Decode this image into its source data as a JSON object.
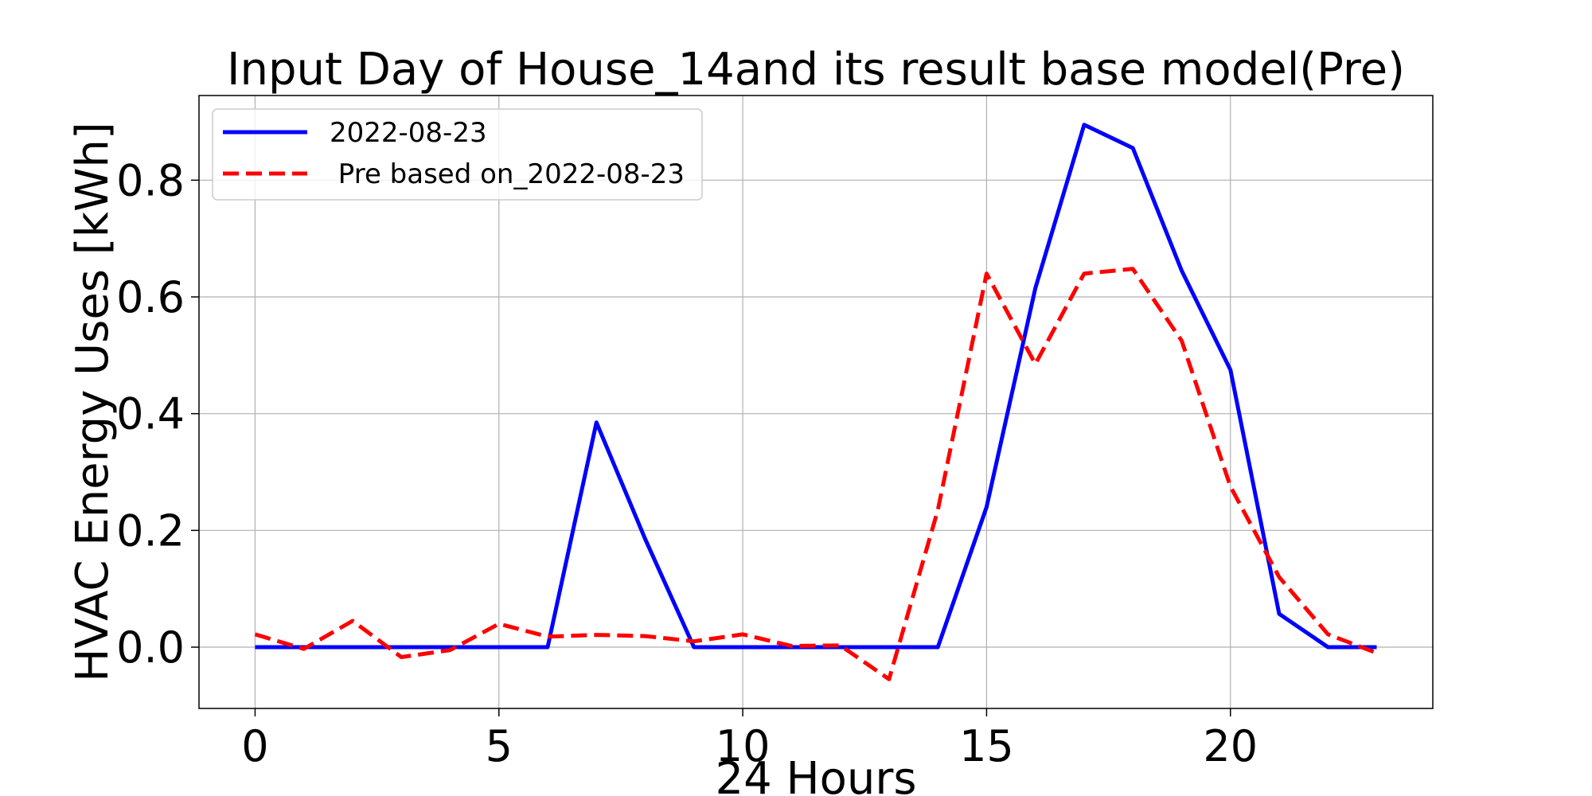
{
  "chart_data": {
    "type": "line",
    "title": "Input Day of House_14and its result base model(Pre)",
    "xlabel": "24 Hours",
    "ylabel": "HVAC Energy Uses [kWh]",
    "xlim": [
      -1.15,
      24.15
    ],
    "ylim": [
      -0.105,
      0.945
    ],
    "xticks": [
      0,
      5,
      10,
      15,
      20
    ],
    "yticks": [
      0.0,
      0.2,
      0.4,
      0.6,
      0.8
    ],
    "xtick_labels": [
      "0",
      "5",
      "10",
      "15",
      "20"
    ],
    "ytick_labels": [
      "0.0",
      "0.2",
      "0.4",
      "0.6",
      "0.8"
    ],
    "grid": true,
    "legend_position": "top-left",
    "x": [
      0,
      1,
      2,
      3,
      4,
      5,
      6,
      7,
      8,
      9,
      10,
      11,
      12,
      13,
      14,
      15,
      16,
      17,
      18,
      19,
      20,
      21,
      22,
      23
    ],
    "series": [
      {
        "name": "2022-08-23",
        "color": "#0000ff",
        "style": "solid",
        "values": [
          0,
          0,
          0,
          0,
          0,
          0,
          0,
          0.385,
          0.185,
          0,
          0,
          0,
          0,
          0,
          0,
          0.24,
          0.615,
          0.895,
          0.855,
          0.645,
          0.475,
          0.057,
          0,
          0
        ]
      },
      {
        "name": " Pre based on_2022-08-23",
        "color": "#ff0000",
        "style": "dashed",
        "values": [
          0.022,
          -0.003,
          0.045,
          -0.017,
          -0.005,
          0.04,
          0.018,
          0.021,
          0.019,
          0.01,
          0.022,
          0.002,
          0.003,
          -0.055,
          0.235,
          0.64,
          0.485,
          0.64,
          0.648,
          0.525,
          0.275,
          0.12,
          0.022,
          -0.01
        ]
      }
    ]
  }
}
